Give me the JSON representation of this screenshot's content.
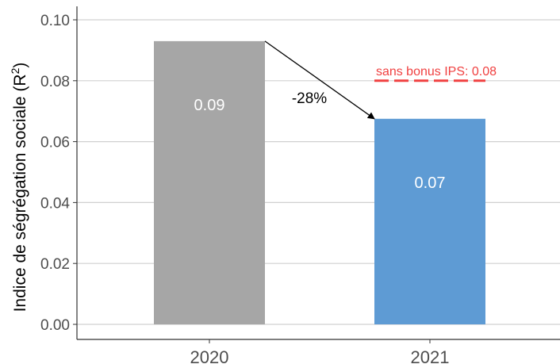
{
  "chart_data": {
    "type": "bar",
    "categories": [
      "2020",
      "2021"
    ],
    "values": [
      0.093,
      0.0675
    ],
    "value_labels": [
      "0.09",
      "0.07"
    ],
    "bar_colors": [
      "#a6a6a6",
      "#5e9bd4"
    ],
    "ylabel_main": "Indice de ségrégation sociale (R",
    "ylabel_sup": "2",
    "ylabel_end": ")",
    "xlabel": "",
    "ylim": [
      0,
      0.1
    ],
    "yticks": [
      0,
      0.02,
      0.04,
      0.06,
      0.08,
      0.1
    ],
    "ytick_labels": [
      "0.00",
      "0.02",
      "0.04",
      "0.06",
      "0.08",
      "0.10"
    ],
    "grid": true,
    "annotations": {
      "change_label": "-28%",
      "reference_label": "sans bonus IPS: 0.08",
      "reference_value": 0.08,
      "reference_color": "#f04040"
    }
  }
}
